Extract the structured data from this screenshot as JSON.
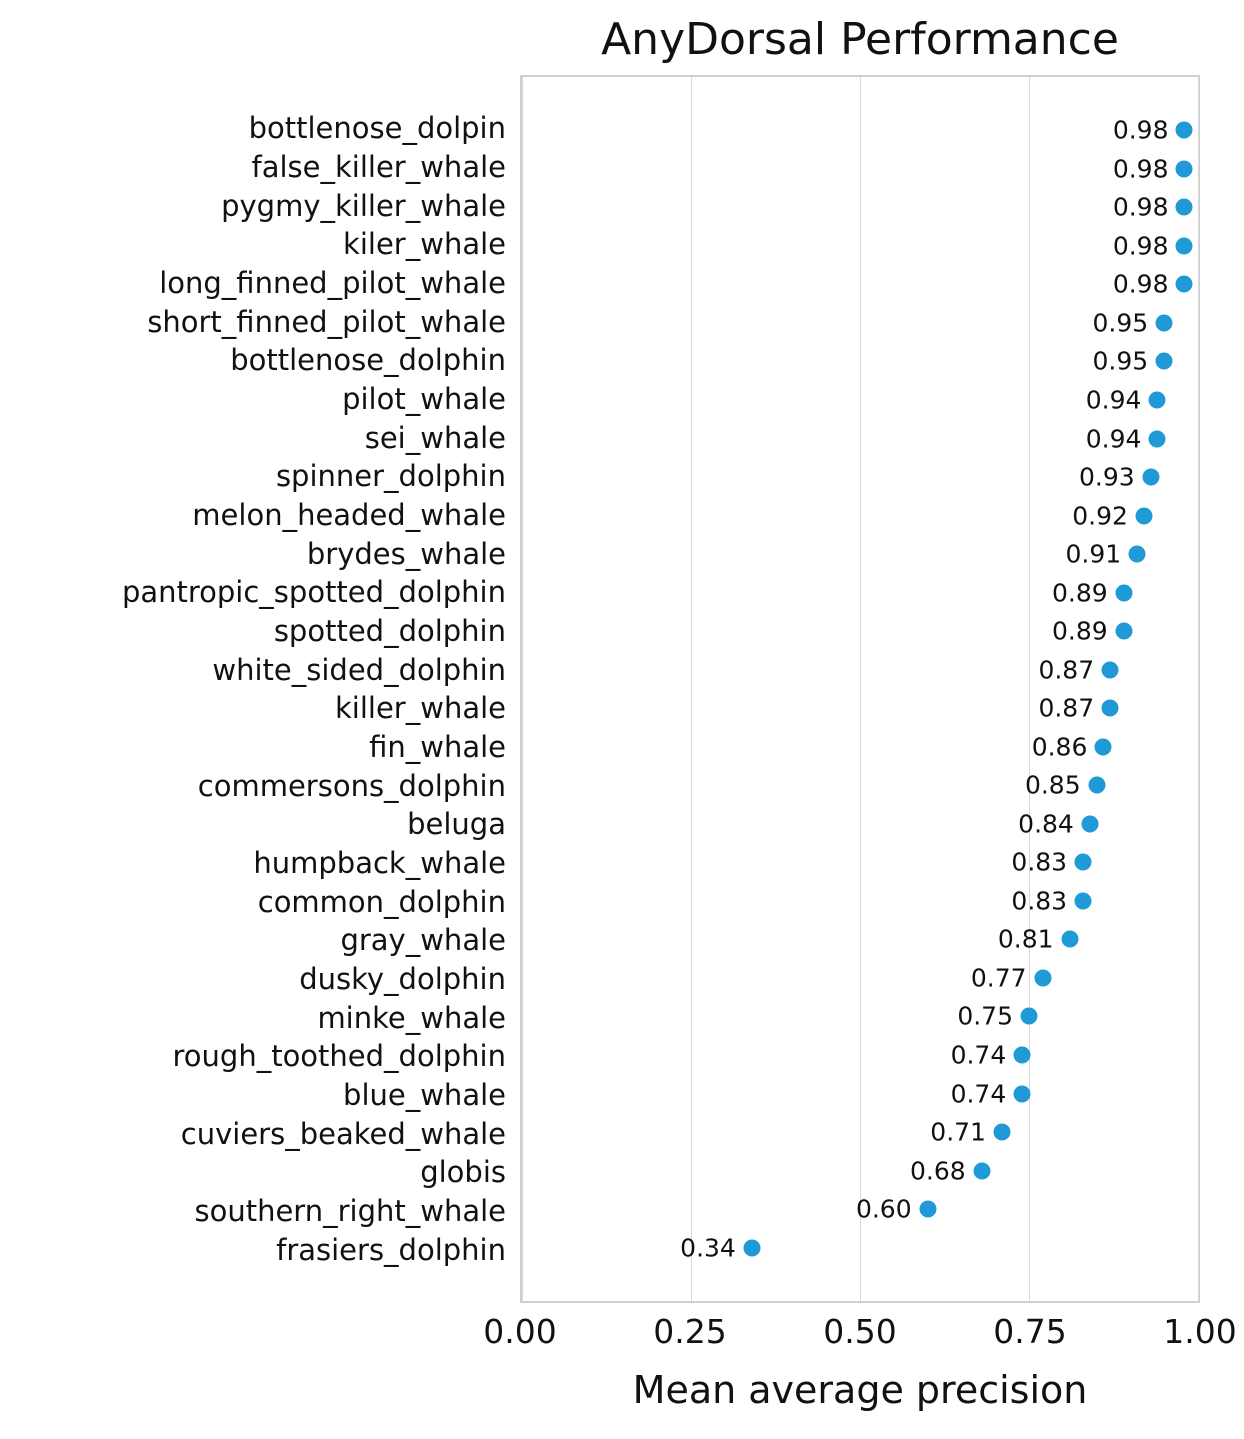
{
  "title": "AnyDorsal Performance",
  "xaxis_title": "Mean average precision",
  "chart_data": {
    "type": "scatter",
    "orientation": "horizontal",
    "title": "AnyDorsal Performance",
    "xlabel": "Mean average precision",
    "ylabel": "",
    "xlim": [
      0.0,
      1.0
    ],
    "grid": true,
    "x_ticks": [
      {
        "label": "0.00",
        "value": 0.0
      },
      {
        "label": "0.25",
        "value": 0.25
      },
      {
        "label": "0.50",
        "value": 0.5
      },
      {
        "label": "0.75",
        "value": 0.75
      },
      {
        "label": "1.00",
        "value": 1.0
      }
    ],
    "dot_color": "#1f9ad7",
    "categories": [
      "bottlenose_dolpin",
      "false_killer_whale",
      "pygmy_killer_whale",
      "kiler_whale",
      "long_finned_pilot_whale",
      "short_finned_pilot_whale",
      "bottlenose_dolphin",
      "pilot_whale",
      "sei_whale",
      "spinner_dolphin",
      "melon_headed_whale",
      "brydes_whale",
      "pantropic_spotted_dolphin",
      "spotted_dolphin",
      "white_sided_dolphin",
      "killer_whale",
      "fin_whale",
      "commersons_dolphin",
      "beluga",
      "humpback_whale",
      "common_dolphin",
      "gray_whale",
      "dusky_dolphin",
      "minke_whale",
      "rough_toothed_dolphin",
      "blue_whale",
      "cuviers_beaked_whale",
      "globis",
      "southern_right_whale",
      "frasiers_dolphin"
    ],
    "values": [
      0.98,
      0.98,
      0.98,
      0.98,
      0.98,
      0.95,
      0.95,
      0.94,
      0.94,
      0.93,
      0.92,
      0.91,
      0.89,
      0.89,
      0.87,
      0.87,
      0.86,
      0.85,
      0.84,
      0.83,
      0.83,
      0.81,
      0.77,
      0.75,
      0.74,
      0.74,
      0.71,
      0.68,
      0.6,
      0.34
    ]
  }
}
